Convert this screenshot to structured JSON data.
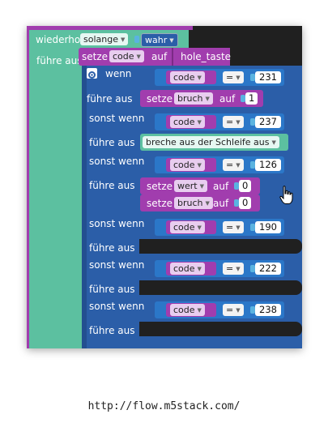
{
  "loop": {
    "prefix": "wiederhol",
    "mode": "solange",
    "condition": "wahr",
    "do_label": "führe aus"
  },
  "setze1": {
    "label": "setze",
    "var": "code",
    "auf": "auf",
    "value": "hole_taste"
  },
  "if_block": {
    "wenn": "wenn",
    "fuehre": "führe aus",
    "sonst": "sonst wenn",
    "gear_icon": "gear-icon"
  },
  "compare": [
    {
      "var": "code",
      "op": "=",
      "value": "231"
    },
    {
      "var": "code",
      "op": "=",
      "value": "237"
    },
    {
      "var": "code",
      "op": "=",
      "value": "126"
    },
    {
      "var": "code",
      "op": "=",
      "value": "190"
    },
    {
      "var": "code",
      "op": "=",
      "value": "222"
    },
    {
      "var": "code",
      "op": "=",
      "value": "238"
    }
  ],
  "actions": {
    "set_bruch_1": {
      "label": "setze",
      "var": "bruch",
      "auf": "auf",
      "value": "1"
    },
    "break_loop": "breche aus der Schleife aus",
    "set_wert_0": {
      "label": "setze",
      "var": "wert",
      "auf": "auf",
      "value": "0"
    },
    "set_bruch_0": {
      "label": "setze",
      "var": "bruch",
      "auf": "auf",
      "value": "0"
    }
  },
  "cursor_icon": "hand-pointer-icon",
  "caption": "http://flow.m5stack.com/",
  "colors": {
    "loop": "#5cc0a0",
    "variables": "#a13dae",
    "logic": "#2b5ea8",
    "compare": "#2b77c8",
    "workspace": "#202020"
  }
}
